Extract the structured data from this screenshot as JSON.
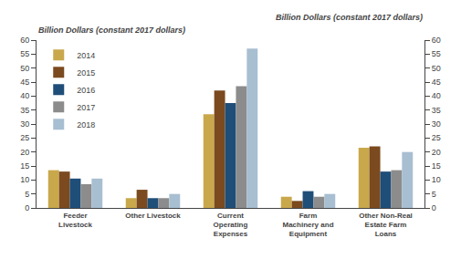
{
  "chart_data": {
    "type": "bar",
    "categories": [
      "Feeder\nLivestock",
      "Other Livestock",
      "Current\nOperating\nExpenses",
      "Farm\nMachinery and\nEquipment",
      "Other Non-Real\nEstate Farm\nLoans"
    ],
    "series": [
      {
        "name": "2014",
        "color": "#C9A84C",
        "values": [
          13.5,
          3.5,
          33.5,
          4.0,
          21.5
        ]
      },
      {
        "name": "2015",
        "color": "#7B4A1E",
        "values": [
          13.0,
          6.5,
          42.0,
          2.5,
          22.0
        ]
      },
      {
        "name": "2016",
        "color": "#1F4E79",
        "values": [
          10.5,
          3.5,
          37.5,
          6.0,
          13.0
        ]
      },
      {
        "name": "2017",
        "color": "#8C8C8C",
        "values": [
          8.5,
          3.5,
          43.5,
          4.0,
          13.5
        ]
      },
      {
        "name": "2018",
        "color": "#A8BED1",
        "values": [
          10.5,
          5.0,
          57.0,
          5.0,
          20.0
        ]
      }
    ],
    "ylabel": "Billion Dollars (constant 2017 dollars)",
    "y2label": "Billion Dollars (constant 2017 dollars)",
    "ylim": [
      0,
      60
    ],
    "yticks": [
      0,
      5,
      10,
      15,
      20,
      25,
      30,
      35,
      40,
      45,
      50,
      55,
      60
    ],
    "y2lim": [
      0,
      60
    ],
    "y2ticks": [
      0,
      5,
      10,
      15,
      20,
      25,
      30,
      35,
      40,
      45,
      50,
      55,
      60
    ],
    "grid": false,
    "legend": "upper left"
  }
}
